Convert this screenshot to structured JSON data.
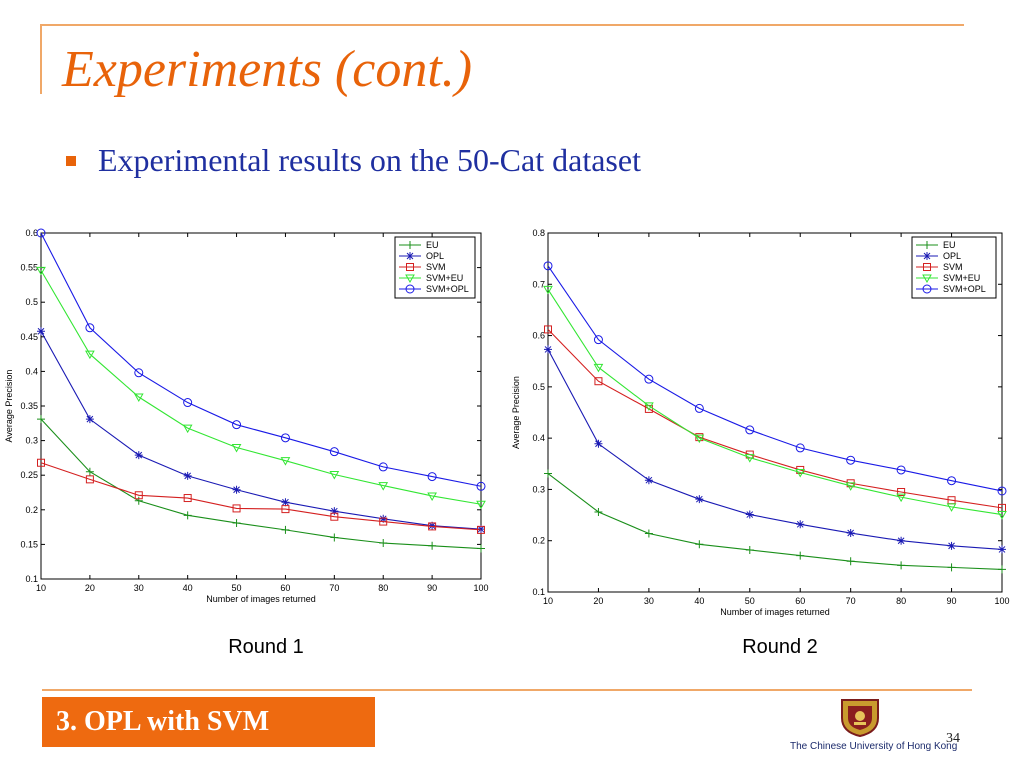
{
  "slide": {
    "title": "Experiments (cont.)",
    "bullet": "Experimental results on the 50-Cat dataset",
    "footer": "3. OPL with SVM",
    "university": "The Chinese University of Hong Kong",
    "page_number": "34"
  },
  "captions": [
    "Round 1",
    "Round 2"
  ],
  "chart_data": [
    {
      "type": "line",
      "xlabel": "Number of images returned",
      "ylabel": "Average Precision",
      "x": [
        10,
        20,
        30,
        40,
        50,
        60,
        70,
        80,
        90,
        100
      ],
      "xlim": [
        10,
        100
      ],
      "ylim": [
        0.1,
        0.6
      ],
      "xticks": [
        10,
        20,
        30,
        40,
        50,
        60,
        70,
        80,
        90,
        100
      ],
      "yticks": [
        0.1,
        0.15,
        0.2,
        0.25,
        0.3,
        0.35,
        0.4,
        0.45,
        0.5,
        0.55,
        0.6
      ],
      "ytick_labels": [
        "0.1",
        "0.15",
        "0.2",
        "0.25",
        "0.3",
        "0.35",
        "0.4",
        "0.45",
        "0.5",
        "0.55",
        "0.6"
      ],
      "legend_position": "top-right",
      "series": [
        {
          "name": "EU",
          "color": "#1a8f1a",
          "marker": "plus",
          "values": [
            0.331,
            0.255,
            0.213,
            0.192,
            0.181,
            0.171,
            0.16,
            0.152,
            0.148,
            0.144
          ]
        },
        {
          "name": "OPL",
          "color": "#1a1ab4",
          "marker": "star",
          "values": [
            0.458,
            0.331,
            0.279,
            0.249,
            0.229,
            0.211,
            0.198,
            0.187,
            0.177,
            0.172
          ]
        },
        {
          "name": "SVM",
          "color": "#d42020",
          "marker": "square",
          "values": [
            0.268,
            0.244,
            0.221,
            0.217,
            0.202,
            0.201,
            0.19,
            0.183,
            0.176,
            0.171
          ]
        },
        {
          "name": "SVM+EU",
          "color": "#33e633",
          "marker": "triangle-down",
          "values": [
            0.546,
            0.425,
            0.363,
            0.318,
            0.29,
            0.271,
            0.251,
            0.235,
            0.22,
            0.208
          ]
        },
        {
          "name": "SVM+OPL",
          "color": "#1a1ae6",
          "marker": "circle",
          "values": [
            0.6,
            0.463,
            0.398,
            0.355,
            0.323,
            0.304,
            0.284,
            0.262,
            0.248,
            0.234
          ]
        }
      ]
    },
    {
      "type": "line",
      "xlabel": "Number of images returned",
      "ylabel": "Average Precision",
      "x": [
        10,
        20,
        30,
        40,
        50,
        60,
        70,
        80,
        90,
        100
      ],
      "xlim": [
        10,
        100
      ],
      "ylim": [
        0.1,
        0.8
      ],
      "xticks": [
        10,
        20,
        30,
        40,
        50,
        60,
        70,
        80,
        90,
        100
      ],
      "yticks": [
        0.1,
        0.2,
        0.3,
        0.4,
        0.5,
        0.6,
        0.7,
        0.8
      ],
      "ytick_labels": [
        "0.1",
        "0.2",
        "0.3",
        "0.4",
        "0.5",
        "0.6",
        "0.7",
        "0.8"
      ],
      "legend_position": "top-right",
      "series": [
        {
          "name": "EU",
          "color": "#1a8f1a",
          "marker": "plus",
          "values": [
            0.331,
            0.256,
            0.214,
            0.193,
            0.182,
            0.171,
            0.16,
            0.152,
            0.148,
            0.144
          ]
        },
        {
          "name": "OPL",
          "color": "#1a1ab4",
          "marker": "star",
          "values": [
            0.573,
            0.389,
            0.318,
            0.281,
            0.251,
            0.232,
            0.215,
            0.2,
            0.19,
            0.183
          ]
        },
        {
          "name": "SVM",
          "color": "#d42020",
          "marker": "square",
          "values": [
            0.612,
            0.511,
            0.457,
            0.402,
            0.368,
            0.338,
            0.312,
            0.295,
            0.279,
            0.264
          ]
        },
        {
          "name": "SVM+EU",
          "color": "#33e633",
          "marker": "triangle-down",
          "values": [
            0.69,
            0.538,
            0.463,
            0.4,
            0.362,
            0.333,
            0.307,
            0.285,
            0.266,
            0.251
          ]
        },
        {
          "name": "SVM+OPL",
          "color": "#1a1ae6",
          "marker": "circle",
          "values": [
            0.736,
            0.592,
            0.515,
            0.458,
            0.416,
            0.381,
            0.357,
            0.338,
            0.317,
            0.297
          ]
        }
      ]
    }
  ]
}
